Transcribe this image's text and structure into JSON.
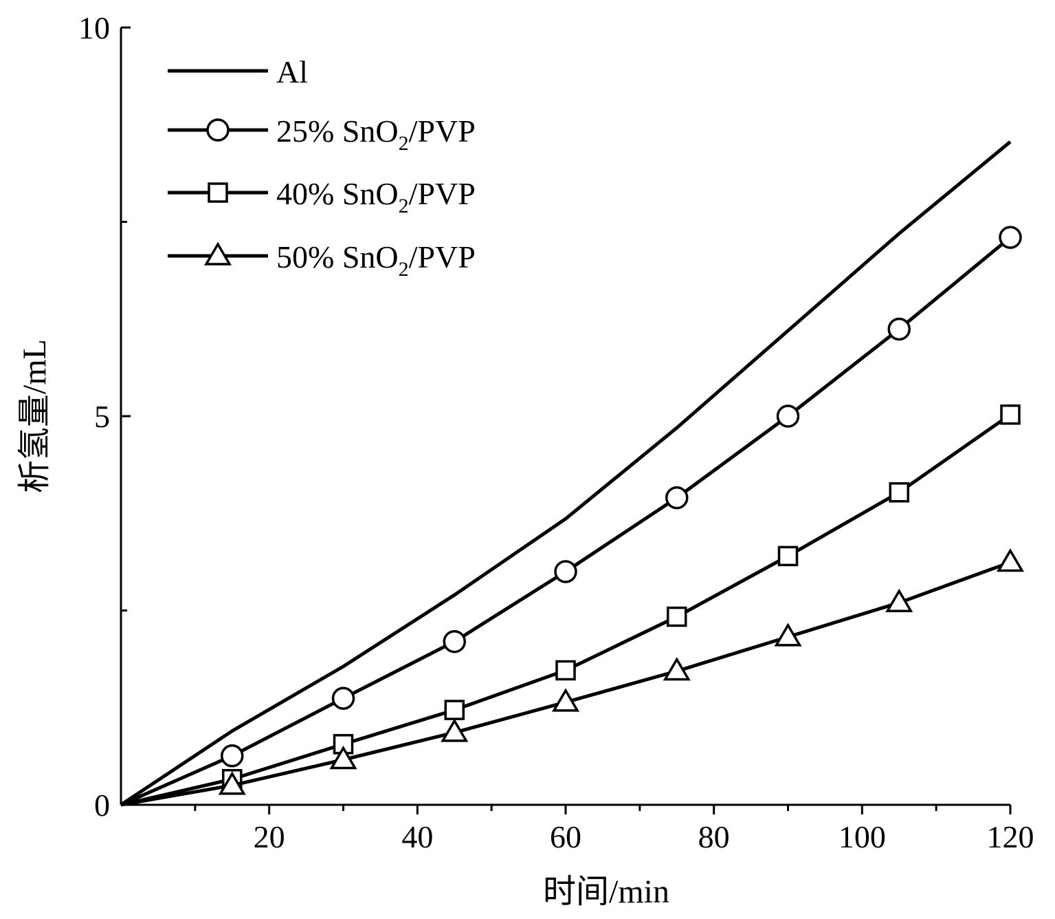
{
  "chart_data": {
    "type": "line",
    "title": "",
    "xlabel": "时间/min",
    "ylabel": "析氢量/mL",
    "xlim": [
      0,
      120
    ],
    "ylim": [
      0,
      10
    ],
    "x_ticks": [
      20,
      40,
      60,
      80,
      100,
      120
    ],
    "x_minor_ticks": [
      10,
      30,
      50,
      70,
      90,
      110
    ],
    "y_ticks": [
      0,
      5,
      10
    ],
    "y_minor_ticks": [
      2.5,
      7.5
    ],
    "legend_position": "top-left",
    "grid": false,
    "series": [
      {
        "name": "Al",
        "label_main": "Al",
        "label_sub": "",
        "label_tail": "",
        "marker": "none",
        "x": [
          0,
          15,
          30,
          45,
          60,
          75,
          90,
          105,
          120
        ],
        "y": [
          0,
          0.95,
          1.78,
          2.7,
          3.68,
          4.85,
          6.1,
          7.35,
          8.53
        ]
      },
      {
        "name": "25% SnO2/PVP",
        "label_main": "25% SnO",
        "label_sub": "2",
        "label_tail": "/PVP",
        "marker": "circle",
        "x": [
          0,
          15,
          30,
          45,
          60,
          75,
          90,
          105,
          120
        ],
        "y": [
          0,
          0.63,
          1.37,
          2.1,
          3.0,
          3.95,
          5.0,
          6.12,
          7.3
        ]
      },
      {
        "name": "40% SnO2/PVP",
        "label_main": "40% SnO",
        "label_sub": "2",
        "label_tail": "/PVP",
        "marker": "square",
        "x": [
          0,
          15,
          30,
          45,
          60,
          75,
          90,
          105,
          120
        ],
        "y": [
          0,
          0.33,
          0.78,
          1.22,
          1.73,
          2.42,
          3.2,
          4.02,
          5.02
        ]
      },
      {
        "name": "50% SnO2/PVP",
        "label_main": "50% SnO",
        "label_sub": "2",
        "label_tail": "/PVP",
        "marker": "triangle",
        "x": [
          0,
          15,
          30,
          45,
          60,
          75,
          90,
          105,
          120
        ],
        "y": [
          0,
          0.25,
          0.58,
          0.93,
          1.32,
          1.72,
          2.16,
          2.6,
          3.12
        ]
      }
    ]
  }
}
